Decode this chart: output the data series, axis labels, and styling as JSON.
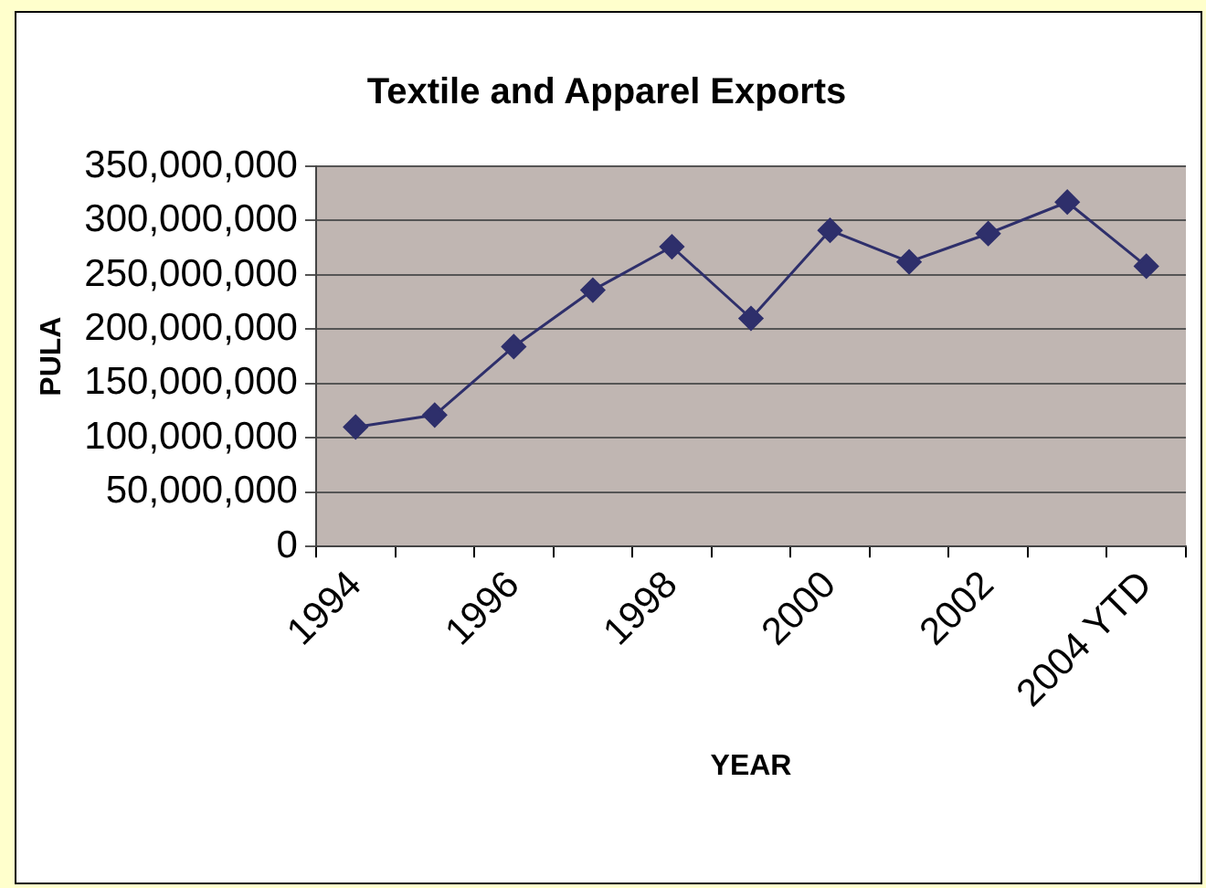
{
  "chart_data": {
    "type": "line",
    "title": "Textile and Apparel Exports",
    "xlabel": "YEAR",
    "ylabel": "PULA",
    "categories": [
      "1994",
      null,
      "1996",
      null,
      "1998",
      null,
      "2000",
      null,
      "2002",
      null,
      "2004 YTD"
    ],
    "series": [
      {
        "color": "#2e2f6b",
        "values": [
          110000000,
          121000000,
          184000000,
          236000000,
          276000000,
          210000000,
          291000000,
          262000000,
          288000000,
          317000000,
          258000000
        ]
      }
    ],
    "ylim": [
      0,
      350000000
    ],
    "yticks": [
      0,
      {
        "value": 50000000,
        "label": "50,000,000"
      },
      {
        "value": 100000000,
        "label": "100,000,000"
      },
      {
        "value": 150000000,
        "label": "150,000,000"
      },
      {
        "value": 200000000,
        "label": "200,000,000"
      },
      {
        "value": 250000000,
        "label": "250,000,000"
      },
      {
        "value": 300000000,
        "label": "300,000,000"
      },
      {
        "value": 350000000,
        "label": "350,000,000"
      }
    ],
    "grid": "y",
    "legend": false,
    "marker": "diamond",
    "line_style": "solid"
  }
}
